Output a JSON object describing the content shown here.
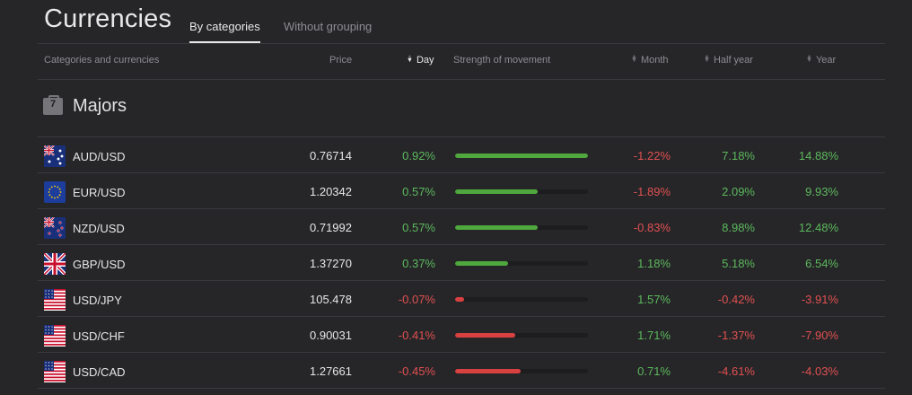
{
  "header": {
    "title": "Currencies",
    "tabs": [
      {
        "label": "By categories",
        "active": true
      },
      {
        "label": "Without grouping",
        "active": false
      }
    ]
  },
  "columns": {
    "categories": "Categories and currencies",
    "price": "Price",
    "day": "Day",
    "strength": "Strength of movement",
    "month": "Month",
    "half_year": "Half year",
    "year": "Year"
  },
  "category": {
    "count": "7",
    "name": "Majors",
    "icon": "briefcase-icon"
  },
  "colors": {
    "positive": "#5cb85c",
    "negative": "#e05050",
    "bar_positive": "#4fa83d",
    "bar_negative": "#d94040"
  },
  "rows": [
    {
      "pair": "AUD/USD",
      "flag": "australia-flag-icon",
      "price": "0.76714",
      "day": "0.92%",
      "strength": 1.0,
      "month": "-1.22%",
      "half_year": "7.18%",
      "year": "14.88%"
    },
    {
      "pair": "EUR/USD",
      "flag": "eu-flag-icon",
      "price": "1.20342",
      "day": "0.57%",
      "strength": 0.62,
      "month": "-1.89%",
      "half_year": "2.09%",
      "year": "9.93%"
    },
    {
      "pair": "NZD/USD",
      "flag": "new-zealand-flag-icon",
      "price": "0.71992",
      "day": "0.57%",
      "strength": 0.62,
      "month": "-0.83%",
      "half_year": "8.98%",
      "year": "12.48%"
    },
    {
      "pair": "GBP/USD",
      "flag": "uk-flag-icon",
      "price": "1.37270",
      "day": "0.37%",
      "strength": 0.4,
      "month": "1.18%",
      "half_year": "5.18%",
      "year": "6.54%"
    },
    {
      "pair": "USD/JPY",
      "flag": "us-flag-icon",
      "price": "105.478",
      "day": "-0.07%",
      "strength": 0.07,
      "month": "1.57%",
      "half_year": "-0.42%",
      "year": "-3.91%"
    },
    {
      "pair": "USD/CHF",
      "flag": "us-flag-icon",
      "price": "0.90031",
      "day": "-0.41%",
      "strength": 0.45,
      "month": "1.71%",
      "half_year": "-1.37%",
      "year": "-7.90%"
    },
    {
      "pair": "USD/CAD",
      "flag": "us-flag-icon",
      "price": "1.27661",
      "day": "-0.45%",
      "strength": 0.49,
      "month": "0.71%",
      "half_year": "-4.61%",
      "year": "-4.03%"
    }
  ]
}
